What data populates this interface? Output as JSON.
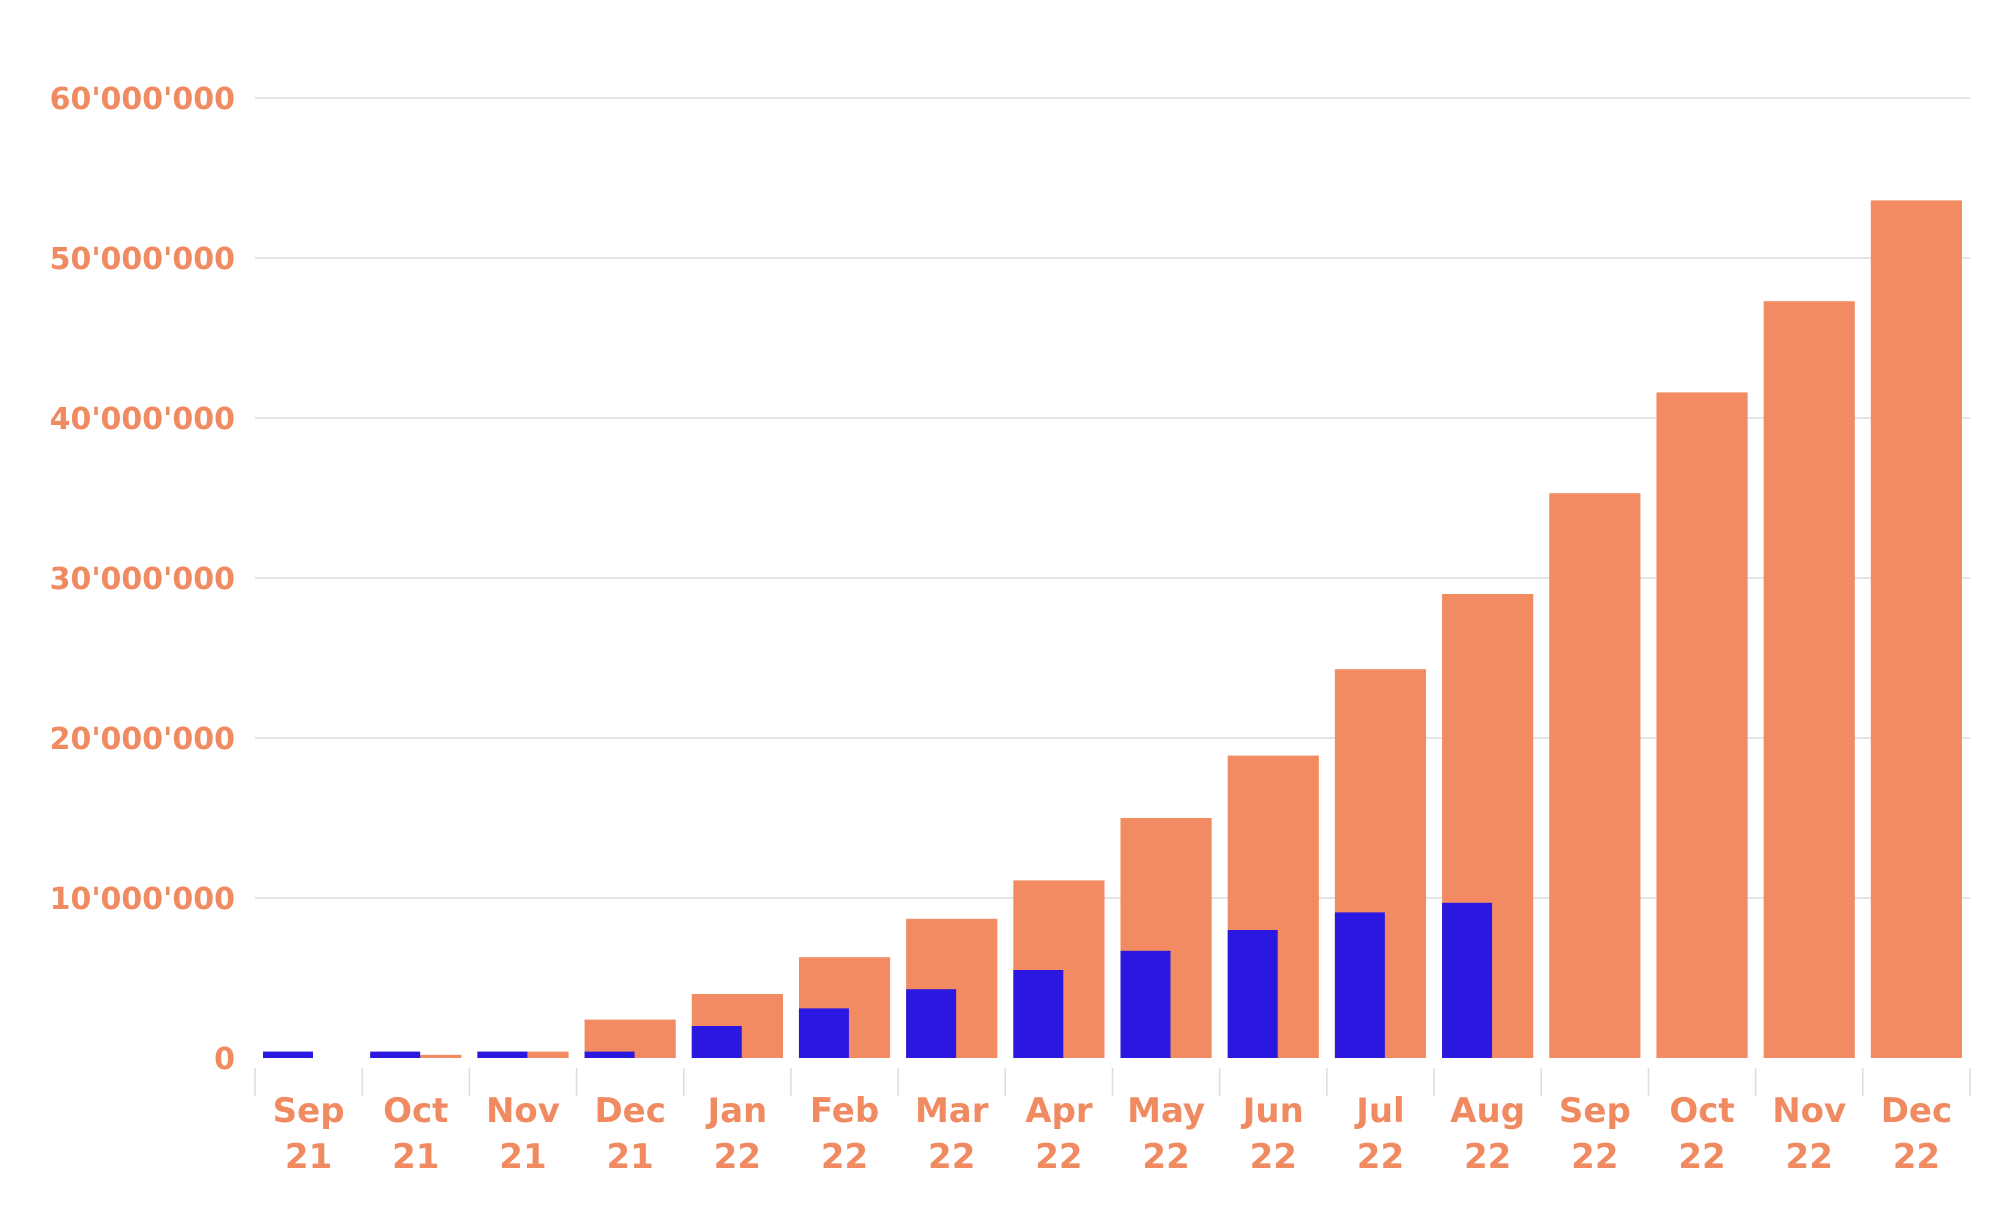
{
  "chart_data": {
    "type": "bar",
    "categories": [
      [
        "Sep",
        "21"
      ],
      [
        "Oct",
        "21"
      ],
      [
        "Nov",
        "21"
      ],
      [
        "Dec",
        "21"
      ],
      [
        "Jan",
        "22"
      ],
      [
        "Feb",
        "22"
      ],
      [
        "Mar",
        "22"
      ],
      [
        "Apr",
        "22"
      ],
      [
        "May",
        "22"
      ],
      [
        "Jun",
        "22"
      ],
      [
        "Jul",
        "22"
      ],
      [
        "Aug",
        "22"
      ],
      [
        "Sep",
        "22"
      ],
      [
        "Oct",
        "22"
      ],
      [
        "Nov",
        "22"
      ],
      [
        "Dec",
        "22"
      ]
    ],
    "series": [
      {
        "color": "#2a17e0",
        "values": [
          400000,
          400000,
          400000,
          400000,
          2000000,
          3100000,
          4300000,
          5500000,
          6700000,
          8000000,
          9100000,
          9700000,
          null,
          null,
          null,
          null
        ]
      },
      {
        "color": "#f28a62",
        "values": [
          0,
          200000,
          400000,
          2400000,
          4000000,
          6300000,
          8700000,
          11100000,
          15000000,
          18900000,
          24300000,
          29000000,
          35300000,
          41600000,
          47300000,
          53600000
        ]
      }
    ],
    "yticks": [
      {
        "value": 0,
        "label": "0"
      },
      {
        "value": 10000000,
        "label": "10'000'000"
      },
      {
        "value": 20000000,
        "label": "20'000'000"
      },
      {
        "value": 30000000,
        "label": "30'000'000"
      },
      {
        "value": 40000000,
        "label": "40'000'000"
      },
      {
        "value": 50000000,
        "label": "50'000'000"
      },
      {
        "value": 60000000,
        "label": "60'000'000"
      }
    ],
    "ylim": [
      0,
      60000000
    ],
    "grid": true,
    "legend": "none",
    "title": "",
    "xlabel": "",
    "ylabel": ""
  }
}
